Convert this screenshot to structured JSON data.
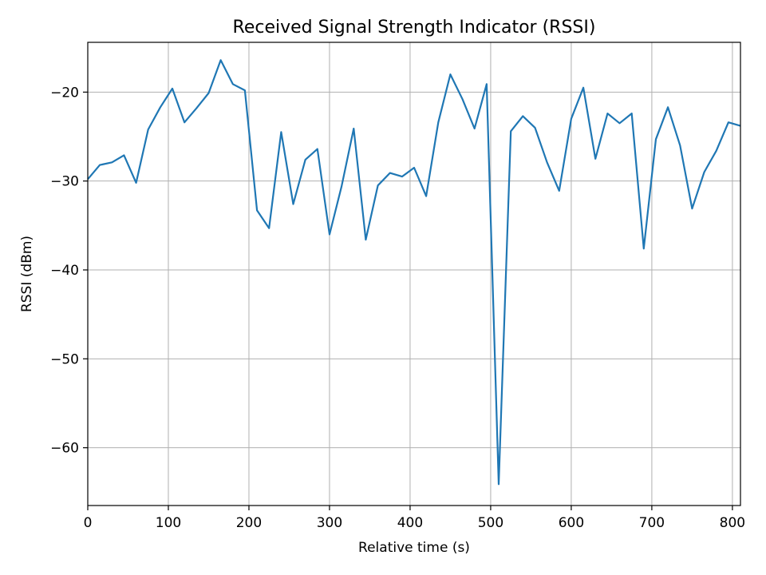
{
  "chart_data": {
    "type": "line",
    "title": "Received Signal Strength Indicator (RSSI)",
    "xlabel": "Relative time (s)",
    "ylabel": "RSSI (dBm)",
    "xlim": [
      0,
      810
    ],
    "ylim": [
      -66.5,
      -14.4
    ],
    "xticks": [
      0,
      100,
      200,
      300,
      400,
      500,
      600,
      700,
      800
    ],
    "yticks": [
      -60,
      -50,
      -40,
      -30,
      -20
    ],
    "grid": true,
    "series_color": "#1f77b4",
    "series": [
      {
        "x": [
          0,
          15,
          30,
          45,
          60,
          75,
          90,
          105,
          120,
          135,
          150,
          165,
          180,
          195,
          210,
          225,
          240,
          255,
          270,
          285,
          300,
          315,
          330,
          345,
          360,
          375,
          390,
          405,
          420,
          435,
          450,
          465,
          480,
          495,
          510,
          525,
          540,
          555,
          570,
          585,
          600,
          615,
          630,
          645,
          660,
          675,
          690,
          705,
          720,
          735,
          750,
          765,
          780,
          795,
          810
        ],
        "values": [
          -29.8,
          -28.2,
          -27.9,
          -27.1,
          -30.2,
          -24.2,
          -21.7,
          -19.6,
          -23.4,
          -21.8,
          -20.1,
          -16.4,
          -19.1,
          -19.8,
          -33.3,
          -35.3,
          -24.5,
          -32.6,
          -27.6,
          -26.4,
          -36.0,
          -30.6,
          -24.1,
          -36.6,
          -30.5,
          -29.1,
          -29.5,
          -28.5,
          -31.7,
          -23.4,
          -18.0,
          -20.8,
          -24.1,
          -19.1,
          -64.1,
          -24.4,
          -22.7,
          -24.0,
          -27.9,
          -31.1,
          -23.0,
          -19.5,
          -27.5,
          -22.4,
          -23.5,
          -22.4,
          -37.6,
          -25.3,
          -21.7,
          -26.0,
          -33.1,
          -29.0,
          -26.6,
          -23.4,
          -23.8
        ]
      }
    ]
  }
}
